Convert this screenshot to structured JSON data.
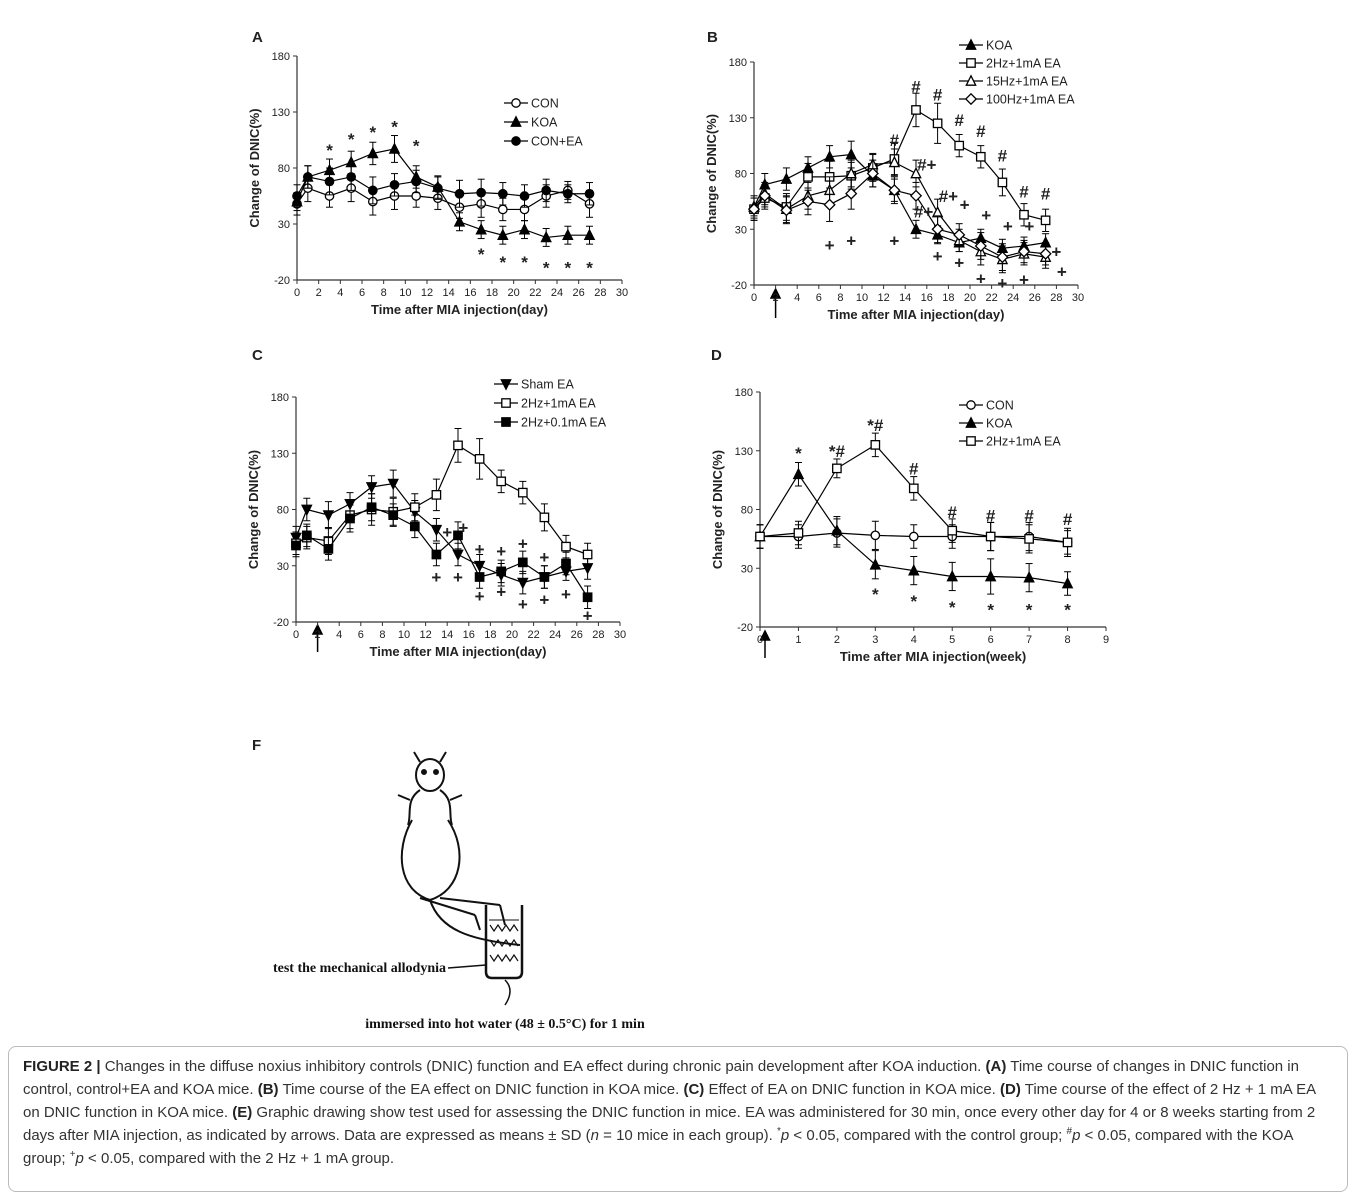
{
  "chart_data": [
    {
      "type": "line",
      "panel": "A",
      "ylabel": "Change of DNIC(%)",
      "xlabel": "Time after MIA injection(day)",
      "x": [
        0,
        1,
        3,
        5,
        7,
        9,
        11,
        13,
        15,
        17,
        19,
        21,
        23,
        25,
        27
      ],
      "xlim": [
        0,
        30
      ],
      "xticks": [
        0,
        2,
        4,
        6,
        8,
        10,
        12,
        14,
        16,
        18,
        20,
        22,
        24,
        26,
        28,
        30
      ],
      "ylim": [
        -20,
        180
      ],
      "yticks": [
        -20,
        30,
        80,
        130,
        180
      ],
      "series": [
        {
          "name": "CON",
          "color": "#000",
          "marker": "circle",
          "filled": false,
          "values": [
            48,
            62,
            55,
            62,
            50,
            55,
            55,
            53,
            45,
            48,
            43,
            43,
            55,
            60,
            48
          ],
          "errors": [
            10,
            12,
            10,
            12,
            12,
            12,
            10,
            10,
            10,
            12,
            10,
            10,
            10,
            8,
            12
          ]
        },
        {
          "name": "KOA",
          "color": "#000",
          "marker": "triangle",
          "filled": true,
          "values": [
            50,
            72,
            78,
            85,
            93,
            97,
            72,
            63,
            32,
            25,
            20,
            25,
            18,
            20,
            20
          ],
          "errors": [
            8,
            10,
            10,
            10,
            10,
            12,
            10,
            10,
            8,
            8,
            8,
            8,
            8,
            8,
            8
          ]
        },
        {
          "name": "CON+EA",
          "color": "#000",
          "marker": "circle",
          "filled": true,
          "values": [
            55,
            72,
            68,
            72,
            60,
            65,
            68,
            62,
            57,
            58,
            57,
            55,
            60,
            57,
            57
          ],
          "errors": [
            10,
            10,
            12,
            12,
            12,
            10,
            10,
            10,
            12,
            12,
            10,
            10,
            10,
            8,
            10
          ]
        }
      ],
      "annotations": [
        {
          "text": "*",
          "x": 3,
          "y": 96
        },
        {
          "text": "*",
          "x": 5,
          "y": 106
        },
        {
          "text": "*",
          "x": 7,
          "y": 112
        },
        {
          "text": "*",
          "x": 9,
          "y": 117
        },
        {
          "text": "*",
          "x": 11,
          "y": 100
        },
        {
          "text": "*",
          "x": 17,
          "y": 3
        },
        {
          "text": "*",
          "x": 19,
          "y": -4
        },
        {
          "text": "*",
          "x": 21,
          "y": -4
        },
        {
          "text": "*",
          "x": 23,
          "y": -9
        },
        {
          "text": "*",
          "x": 25,
          "y": -9
        },
        {
          "text": "*",
          "x": 27,
          "y": -9
        }
      ]
    },
    {
      "type": "line",
      "panel": "B",
      "ylabel": "Change of DNIC(%)",
      "xlabel": "Time after MIA injection(day)",
      "x": [
        0,
        1,
        3,
        5,
        7,
        9,
        11,
        13,
        15,
        17,
        19,
        21,
        23,
        25,
        27
      ],
      "xlim": [
        0,
        30
      ],
      "xticks": [
        0,
        2,
        4,
        6,
        8,
        10,
        12,
        14,
        16,
        18,
        20,
        22,
        24,
        26,
        28,
        30
      ],
      "ylim": [
        -20,
        180
      ],
      "yticks": [
        -20,
        30,
        80,
        130,
        180
      ],
      "series": [
        {
          "name": "KOA",
          "color": "#000",
          "marker": "triangle",
          "filled": true,
          "values": [
            50,
            70,
            75,
            85,
            95,
            97,
            78,
            65,
            30,
            25,
            18,
            22,
            13,
            15,
            18
          ],
          "errors": [
            8,
            10,
            10,
            10,
            10,
            12,
            10,
            10,
            8,
            8,
            8,
            8,
            8,
            8,
            8
          ]
        },
        {
          "name": "2Hz+1mA EA",
          "color": "#000",
          "marker": "square",
          "filled": false,
          "values": [
            48,
            58,
            50,
            77,
            77,
            78,
            85,
            93,
            137,
            125,
            105,
            95,
            72,
            43,
            38
          ],
          "errors": [
            10,
            10,
            12,
            12,
            14,
            12,
            12,
            14,
            15,
            18,
            10,
            10,
            12,
            10,
            10
          ]
        },
        {
          "name": "15Hz+1mA EA",
          "color": "#000",
          "marker": "triangle",
          "filled": false,
          "values": [
            50,
            62,
            48,
            60,
            65,
            80,
            88,
            90,
            80,
            45,
            20,
            10,
            3,
            8,
            5
          ],
          "errors": [
            10,
            10,
            12,
            12,
            12,
            12,
            10,
            12,
            12,
            12,
            10,
            12,
            12,
            10,
            10
          ]
        },
        {
          "name": "100Hz+1mA EA",
          "color": "#000",
          "marker": "diamond",
          "filled": false,
          "values": [
            48,
            60,
            47,
            55,
            52,
            62,
            80,
            65,
            60,
            30,
            25,
            15,
            5,
            10,
            8
          ],
          "errors": [
            10,
            10,
            12,
            12,
            15,
            14,
            12,
            12,
            12,
            12,
            10,
            12,
            12,
            10,
            10
          ]
        }
      ],
      "annotations": [
        {
          "text": "#",
          "x": 13,
          "y": 110
        },
        {
          "text": "#",
          "x": 15,
          "y": 158
        },
        {
          "text": "#",
          "x": 17,
          "y": 151
        },
        {
          "text": "#",
          "x": 19,
          "y": 128
        },
        {
          "text": "#",
          "x": 21,
          "y": 118
        },
        {
          "text": "#",
          "x": 23,
          "y": 96
        },
        {
          "text": "#",
          "x": 25,
          "y": 64
        },
        {
          "text": "#",
          "x": 27,
          "y": 62
        },
        {
          "text": "#+",
          "x": 16,
          "y": 88
        },
        {
          "text": "#+",
          "x": 18,
          "y": 60
        },
        {
          "text": "#+",
          "x": 15.7,
          "y": 46
        },
        {
          "text": "+",
          "x": 19.5,
          "y": 52
        },
        {
          "text": "+",
          "x": 21.5,
          "y": 43
        },
        {
          "text": "+",
          "x": 23.5,
          "y": 33
        },
        {
          "text": "+",
          "x": 25.5,
          "y": 33
        },
        {
          "text": "+",
          "x": 7,
          "y": 16
        },
        {
          "text": "+",
          "x": 9,
          "y": 20
        },
        {
          "text": "+",
          "x": 13,
          "y": 20
        },
        {
          "text": "+",
          "x": 17,
          "y": 6
        },
        {
          "text": "+",
          "x": 19,
          "y": 0
        },
        {
          "text": "+",
          "x": 21,
          "y": -14
        },
        {
          "text": "+",
          "x": 23,
          "y": -18
        },
        {
          "text": "+",
          "x": 25,
          "y": -15
        },
        {
          "text": "+",
          "x": 28,
          "y": 10
        },
        {
          "text": "+",
          "x": 28.5,
          "y": -8
        }
      ]
    },
    {
      "type": "line",
      "panel": "C",
      "ylabel": "Change of DNIC(%)",
      "xlabel": "Time after MIA injection(day)",
      "x": [
        0,
        1,
        3,
        5,
        7,
        9,
        11,
        13,
        15,
        17,
        19,
        21,
        23,
        25,
        27
      ],
      "xlim": [
        0,
        30
      ],
      "xticks": [
        0,
        2,
        4,
        6,
        8,
        10,
        12,
        14,
        16,
        18,
        20,
        22,
        24,
        26,
        28,
        30
      ],
      "ylim": [
        -20,
        180
      ],
      "yticks": [
        -20,
        30,
        80,
        130,
        180
      ],
      "series": [
        {
          "name": "Sham EA",
          "color": "#000",
          "marker": "triangle-down",
          "filled": true,
          "values": [
            55,
            80,
            75,
            85,
            100,
            103,
            78,
            62,
            40,
            30,
            22,
            15,
            20,
            25,
            28
          ],
          "errors": [
            10,
            10,
            12,
            10,
            10,
            12,
            10,
            10,
            10,
            10,
            10,
            10,
            10,
            8,
            10
          ]
        },
        {
          "name": "2Hz+1mA EA",
          "color": "#000",
          "marker": "square",
          "filled": false,
          "values": [
            50,
            55,
            52,
            75,
            80,
            78,
            82,
            93,
            137,
            125,
            105,
            95,
            73,
            47,
            40
          ],
          "errors": [
            10,
            10,
            12,
            12,
            14,
            12,
            12,
            14,
            15,
            18,
            10,
            10,
            12,
            10,
            10
          ]
        },
        {
          "name": "2Hz+0.1mA EA",
          "color": "#000",
          "marker": "square",
          "filled": true,
          "values": [
            48,
            57,
            45,
            72,
            82,
            75,
            65,
            40,
            57,
            20,
            25,
            33,
            20,
            32,
            2
          ],
          "errors": [
            10,
            10,
            10,
            12,
            12,
            10,
            10,
            10,
            12,
            10,
            10,
            10,
            10,
            10,
            10
          ]
        }
      ],
      "annotations": [
        {
          "text": "+",
          "x": 14,
          "y": 60
        },
        {
          "text": "+",
          "x": 15.5,
          "y": 64
        },
        {
          "text": "+",
          "x": 17,
          "y": 45
        },
        {
          "text": "+",
          "x": 19,
          "y": 43
        },
        {
          "text": "+",
          "x": 21,
          "y": 50
        },
        {
          "text": "+",
          "x": 23,
          "y": 38
        },
        {
          "text": "+",
          "x": 13,
          "y": 20
        },
        {
          "text": "+",
          "x": 15,
          "y": 20
        },
        {
          "text": "+",
          "x": 17,
          "y": 3
        },
        {
          "text": "+",
          "x": 19,
          "y": 7
        },
        {
          "text": "+",
          "x": 21,
          "y": -4
        },
        {
          "text": "+",
          "x": 23,
          "y": 0
        },
        {
          "text": "+",
          "x": 25,
          "y": 5
        },
        {
          "text": "+",
          "x": 27,
          "y": -14
        }
      ]
    },
    {
      "type": "line",
      "panel": "D",
      "ylabel": "Change of DNIC(%)",
      "xlabel": "Time after MIA injection(week)",
      "x": [
        0,
        1,
        2,
        3,
        4,
        5,
        6,
        7,
        8
      ],
      "xlim": [
        0,
        9
      ],
      "xticks": [
        0,
        1,
        2,
        3,
        4,
        5,
        6,
        7,
        8,
        9
      ],
      "ylim": [
        -20,
        180
      ],
      "yticks": [
        -20,
        30,
        80,
        130,
        180
      ],
      "series": [
        {
          "name": "CON",
          "color": "#000",
          "marker": "circle",
          "filled": false,
          "values": [
            57,
            57,
            60,
            58,
            57,
            57,
            57,
            57,
            52
          ],
          "errors": [
            10,
            10,
            12,
            12,
            10,
            10,
            12,
            12,
            10
          ]
        },
        {
          "name": "KOA",
          "color": "#000",
          "marker": "triangle",
          "filled": true,
          "values": [
            57,
            110,
            62,
            33,
            28,
            23,
            23,
            22,
            17
          ],
          "errors": [
            10,
            10,
            12,
            12,
            12,
            12,
            15,
            12,
            10
          ]
        },
        {
          "name": "2Hz+1mA EA",
          "color": "#000",
          "marker": "square",
          "filled": false,
          "values": [
            57,
            60,
            115,
            135,
            98,
            62,
            57,
            55,
            52
          ],
          "errors": [
            10,
            10,
            8,
            10,
            10,
            10,
            12,
            12,
            12
          ]
        }
      ],
      "annotations": [
        {
          "text": "*",
          "x": 1,
          "y": 128
        },
        {
          "text": "*#",
          "x": 2,
          "y": 130
        },
        {
          "text": "*#",
          "x": 3,
          "y": 152
        },
        {
          "text": "#",
          "x": 4,
          "y": 115
        },
        {
          "text": "#",
          "x": 5,
          "y": 78
        },
        {
          "text": "#",
          "x": 6,
          "y": 75
        },
        {
          "text": "#",
          "x": 7,
          "y": 75
        },
        {
          "text": "#",
          "x": 8,
          "y": 72
        },
        {
          "text": "*",
          "x": 3,
          "y": 8
        },
        {
          "text": "*",
          "x": 4,
          "y": 2
        },
        {
          "text": "*",
          "x": 5,
          "y": -3
        },
        {
          "text": "*",
          "x": 6,
          "y": -5
        },
        {
          "text": "*",
          "x": 7,
          "y": -5
        },
        {
          "text": "*",
          "x": 8,
          "y": -5
        }
      ]
    }
  ],
  "panel_f": {
    "label": "F",
    "left_text": "test the mechanical allodynia",
    "bottom_text": "immersed into hot water (48 ± 0.5°C) for 1 min"
  },
  "caption": [
    "FIGURE 2 |",
    " Changes in the diffuse noxius inhibitory controls (DNIC) function and EA effect during chronic pain development after KOA induction. ",
    "(A)",
    " Time course of changes in DNIC function in control, control+EA and KOA mice. ",
    "(B)",
    " Time course of the EA effect on DNIC function in KOA mice. ",
    "(C)",
    " Effect of EA on DNIC function in KOA mice. ",
    "(D)",
    " Time course of the effect of 2 Hz + 1 mA EA on DNIC function in KOA mice. ",
    "(E)",
    " Graphic drawing show test used for assessing the DNIC function in mice. EA was administered for 30 min, once every other day for 4 or 8 weeks starting from 2 days after MIA injection, as indicated by arrows. Data are expressed as means ± SD (",
    "n",
    " = 10 mice in each group). ",
    "*",
    "p",
    " < 0.05, compared with the control group; ",
    "#",
    "p",
    " < 0.05, compared with the KOA group; ",
    "+",
    "p",
    " < 0.05, compared with the 2 Hz + 1 mA group."
  ]
}
